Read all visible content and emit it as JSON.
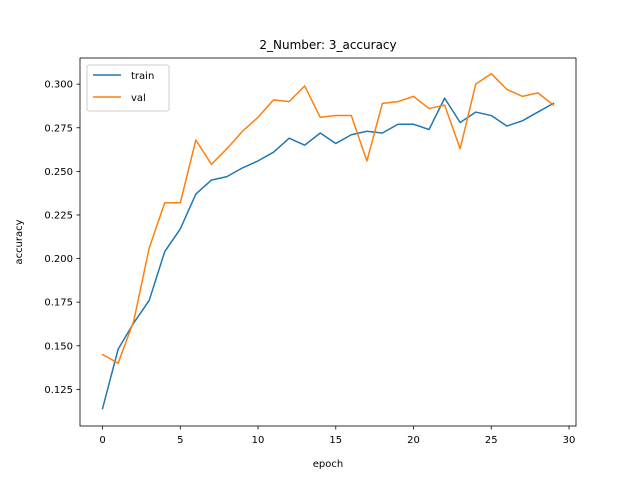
{
  "chart_data": {
    "type": "line",
    "title": "2_Number: 3_accuracy",
    "xlabel": "epoch",
    "ylabel": "accuracy",
    "xlim": [
      -1.45,
      30.45
    ],
    "ylim": [
      0.104,
      0.315
    ],
    "xticks": [
      0,
      5,
      10,
      15,
      20,
      25,
      30
    ],
    "xtick_labels": [
      "0",
      "5",
      "10",
      "15",
      "20",
      "25",
      "30"
    ],
    "yticks": [
      0.125,
      0.15,
      0.175,
      0.2,
      0.225,
      0.25,
      0.275,
      0.3
    ],
    "ytick_labels": [
      "0.125",
      "0.150",
      "0.175",
      "0.200",
      "0.225",
      "0.250",
      "0.275",
      "0.300"
    ],
    "grid": false,
    "legend_position": "top-left",
    "x": [
      0,
      1,
      2,
      3,
      4,
      5,
      6,
      7,
      8,
      9,
      10,
      11,
      12,
      13,
      14,
      15,
      16,
      17,
      18,
      19,
      20,
      21,
      22,
      23,
      24,
      25,
      26,
      27,
      28,
      29
    ],
    "series": [
      {
        "name": "train",
        "color": "#1f77b4",
        "values": [
          0.114,
          0.148,
          0.163,
          0.176,
          0.204,
          0.217,
          0.237,
          0.245,
          0.247,
          0.252,
          0.256,
          0.261,
          0.269,
          0.265,
          0.272,
          0.266,
          0.271,
          0.273,
          0.272,
          0.277,
          0.277,
          0.274,
          0.292,
          0.278,
          0.284,
          0.282,
          0.276,
          0.279,
          0.284,
          0.289
        ]
      },
      {
        "name": "val",
        "color": "#ff7f0e",
        "values": [
          0.145,
          0.14,
          0.164,
          0.206,
          0.232,
          0.232,
          0.268,
          0.254,
          0.263,
          0.273,
          0.281,
          0.291,
          0.29,
          0.299,
          0.281,
          0.282,
          0.282,
          0.256,
          0.289,
          0.29,
          0.293,
          0.286,
          0.288,
          0.263,
          0.3,
          0.306,
          0.297,
          0.293,
          0.295,
          0.288
        ]
      }
    ]
  }
}
